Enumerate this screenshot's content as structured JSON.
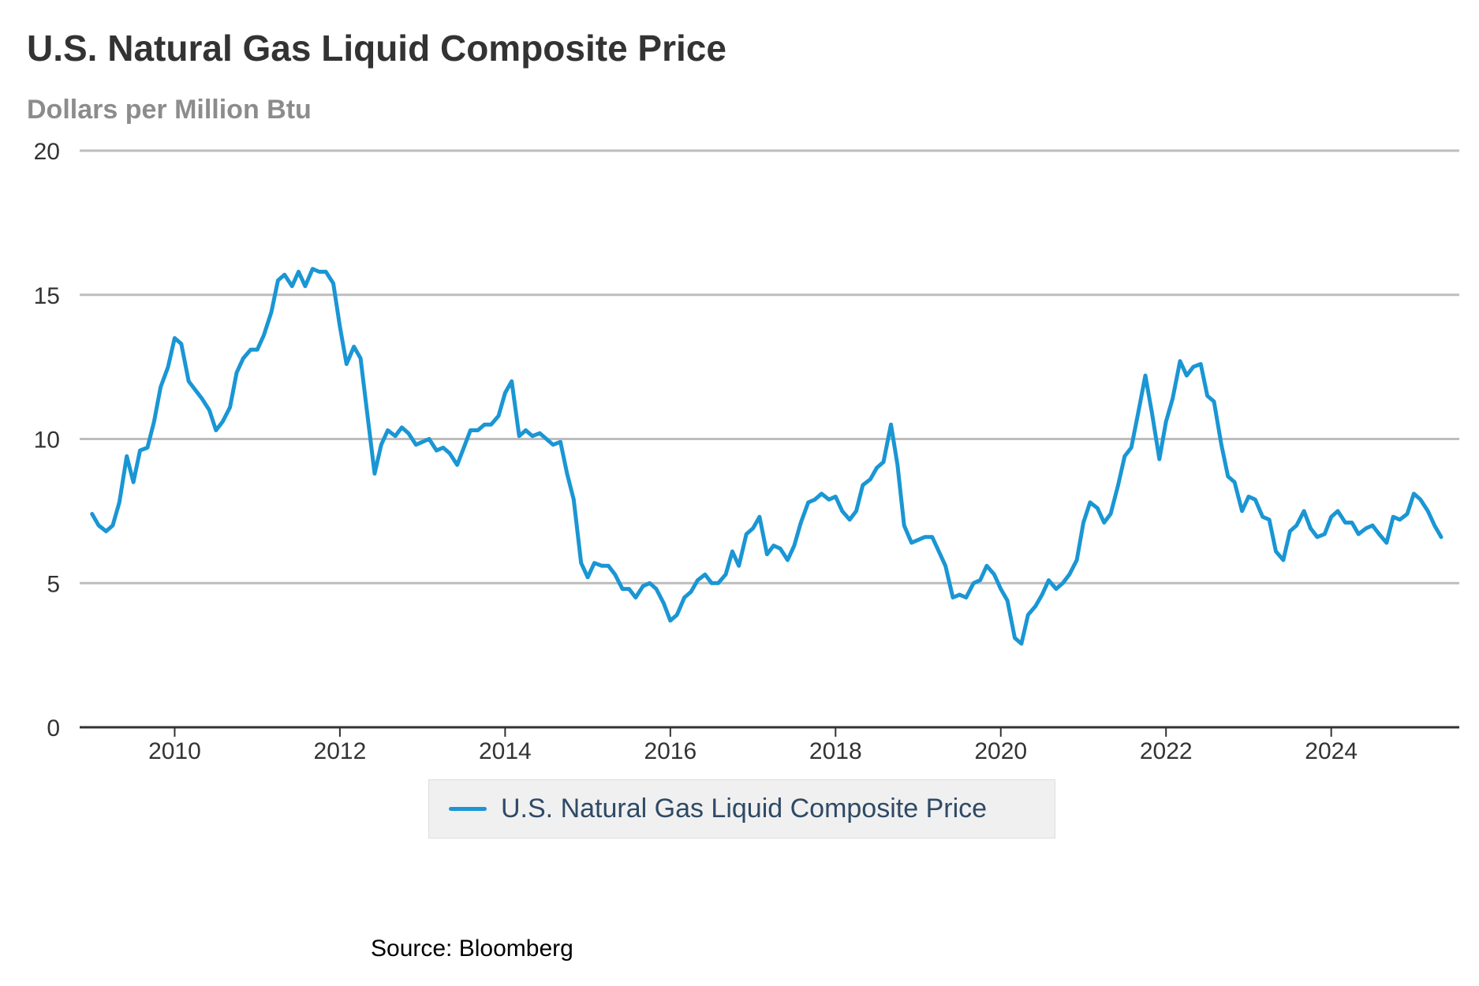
{
  "chart_data": {
    "type": "line",
    "title": "U.S. Natural Gas Liquid Composite Price",
    "subtitle": "Dollars per Million Btu",
    "xlabel": "",
    "ylabel": "",
    "source": "Source: Bloomberg",
    "x_ticks": [
      "2010",
      "2012",
      "2014",
      "2016",
      "2018",
      "2020",
      "2022",
      "2024"
    ],
    "y_ticks": [
      "0",
      "5",
      "10",
      "15",
      "20"
    ],
    "xlim": [
      2008.85,
      2025.55
    ],
    "ylim": [
      0,
      20
    ],
    "grid": true,
    "legend_position": "bottom-center",
    "series": [
      {
        "name": "U.S. Natural Gas Liquid Composite Price",
        "color": "#1a96d4",
        "points": [
          [
            2009.0,
            7.4
          ],
          [
            2009.08,
            7.0
          ],
          [
            2009.17,
            6.8
          ],
          [
            2009.25,
            7.0
          ],
          [
            2009.33,
            7.8
          ],
          [
            2009.42,
            9.4
          ],
          [
            2009.5,
            8.5
          ],
          [
            2009.58,
            9.6
          ],
          [
            2009.67,
            9.7
          ],
          [
            2009.75,
            10.6
          ],
          [
            2009.83,
            11.8
          ],
          [
            2009.92,
            12.5
          ],
          [
            2010.0,
            13.5
          ],
          [
            2010.08,
            13.3
          ],
          [
            2010.17,
            12.0
          ],
          [
            2010.25,
            11.7
          ],
          [
            2010.33,
            11.4
          ],
          [
            2010.42,
            11.0
          ],
          [
            2010.5,
            10.3
          ],
          [
            2010.58,
            10.6
          ],
          [
            2010.67,
            11.1
          ],
          [
            2010.75,
            12.3
          ],
          [
            2010.83,
            12.8
          ],
          [
            2010.92,
            13.1
          ],
          [
            2011.0,
            13.1
          ],
          [
            2011.08,
            13.6
          ],
          [
            2011.17,
            14.4
          ],
          [
            2011.25,
            15.5
          ],
          [
            2011.33,
            15.7
          ],
          [
            2011.42,
            15.3
          ],
          [
            2011.5,
            15.8
          ],
          [
            2011.58,
            15.3
          ],
          [
            2011.67,
            15.9
          ],
          [
            2011.75,
            15.8
          ],
          [
            2011.83,
            15.8
          ],
          [
            2011.92,
            15.4
          ],
          [
            2012.0,
            13.9
          ],
          [
            2012.08,
            12.6
          ],
          [
            2012.17,
            13.2
          ],
          [
            2012.25,
            12.8
          ],
          [
            2012.33,
            10.9
          ],
          [
            2012.42,
            8.8
          ],
          [
            2012.5,
            9.8
          ],
          [
            2012.58,
            10.3
          ],
          [
            2012.67,
            10.1
          ],
          [
            2012.75,
            10.4
          ],
          [
            2012.83,
            10.2
          ],
          [
            2012.92,
            9.8
          ],
          [
            2013.0,
            9.9
          ],
          [
            2013.08,
            10.0
          ],
          [
            2013.17,
            9.6
          ],
          [
            2013.25,
            9.7
          ],
          [
            2013.33,
            9.5
          ],
          [
            2013.42,
            9.1
          ],
          [
            2013.5,
            9.7
          ],
          [
            2013.58,
            10.3
          ],
          [
            2013.67,
            10.3
          ],
          [
            2013.75,
            10.5
          ],
          [
            2013.83,
            10.5
          ],
          [
            2013.92,
            10.8
          ],
          [
            2014.0,
            11.6
          ],
          [
            2014.08,
            12.0
          ],
          [
            2014.17,
            10.1
          ],
          [
            2014.25,
            10.3
          ],
          [
            2014.33,
            10.1
          ],
          [
            2014.42,
            10.2
          ],
          [
            2014.5,
            10.0
          ],
          [
            2014.58,
            9.8
          ],
          [
            2014.67,
            9.9
          ],
          [
            2014.75,
            8.8
          ],
          [
            2014.83,
            7.9
          ],
          [
            2014.92,
            5.7
          ],
          [
            2015.0,
            5.2
          ],
          [
            2015.08,
            5.7
          ],
          [
            2015.17,
            5.6
          ],
          [
            2015.25,
            5.6
          ],
          [
            2015.33,
            5.3
          ],
          [
            2015.42,
            4.8
          ],
          [
            2015.5,
            4.8
          ],
          [
            2015.58,
            4.5
          ],
          [
            2015.67,
            4.9
          ],
          [
            2015.75,
            5.0
          ],
          [
            2015.83,
            4.8
          ],
          [
            2015.92,
            4.3
          ],
          [
            2016.0,
            3.7
          ],
          [
            2016.08,
            3.9
          ],
          [
            2016.17,
            4.5
          ],
          [
            2016.25,
            4.7
          ],
          [
            2016.33,
            5.1
          ],
          [
            2016.42,
            5.3
          ],
          [
            2016.5,
            5.0
          ],
          [
            2016.58,
            5.0
          ],
          [
            2016.67,
            5.3
          ],
          [
            2016.75,
            6.1
          ],
          [
            2016.83,
            5.6
          ],
          [
            2016.92,
            6.7
          ],
          [
            2017.0,
            6.9
          ],
          [
            2017.08,
            7.3
          ],
          [
            2017.17,
            6.0
          ],
          [
            2017.25,
            6.3
          ],
          [
            2017.33,
            6.2
          ],
          [
            2017.42,
            5.8
          ],
          [
            2017.5,
            6.3
          ],
          [
            2017.58,
            7.1
          ],
          [
            2017.67,
            7.8
          ],
          [
            2017.75,
            7.9
          ],
          [
            2017.83,
            8.1
          ],
          [
            2017.92,
            7.9
          ],
          [
            2018.0,
            8.0
          ],
          [
            2018.08,
            7.5
          ],
          [
            2018.17,
            7.2
          ],
          [
            2018.25,
            7.5
          ],
          [
            2018.33,
            8.4
          ],
          [
            2018.42,
            8.6
          ],
          [
            2018.5,
            9.0
          ],
          [
            2018.58,
            9.2
          ],
          [
            2018.67,
            10.5
          ],
          [
            2018.75,
            9.1
          ],
          [
            2018.83,
            7.0
          ],
          [
            2018.92,
            6.4
          ],
          [
            2019.0,
            6.5
          ],
          [
            2019.08,
            6.6
          ],
          [
            2019.17,
            6.6
          ],
          [
            2019.25,
            6.1
          ],
          [
            2019.33,
            5.6
          ],
          [
            2019.42,
            4.5
          ],
          [
            2019.5,
            4.6
          ],
          [
            2019.58,
            4.5
          ],
          [
            2019.67,
            5.0
          ],
          [
            2019.75,
            5.1
          ],
          [
            2019.83,
            5.6
          ],
          [
            2019.92,
            5.3
          ],
          [
            2020.0,
            4.8
          ],
          [
            2020.08,
            4.4
          ],
          [
            2020.17,
            3.1
          ],
          [
            2020.25,
            2.9
          ],
          [
            2020.33,
            3.9
          ],
          [
            2020.42,
            4.2
          ],
          [
            2020.5,
            4.6
          ],
          [
            2020.58,
            5.1
          ],
          [
            2020.67,
            4.8
          ],
          [
            2020.75,
            5.0
          ],
          [
            2020.83,
            5.3
          ],
          [
            2020.92,
            5.8
          ],
          [
            2021.0,
            7.1
          ],
          [
            2021.08,
            7.8
          ],
          [
            2021.17,
            7.6
          ],
          [
            2021.25,
            7.1
          ],
          [
            2021.33,
            7.4
          ],
          [
            2021.42,
            8.4
          ],
          [
            2021.5,
            9.4
          ],
          [
            2021.58,
            9.7
          ],
          [
            2021.67,
            11.0
          ],
          [
            2021.75,
            12.2
          ],
          [
            2021.83,
            10.9
          ],
          [
            2021.92,
            9.3
          ],
          [
            2022.0,
            10.6
          ],
          [
            2022.08,
            11.4
          ],
          [
            2022.17,
            12.7
          ],
          [
            2022.25,
            12.2
          ],
          [
            2022.33,
            12.5
          ],
          [
            2022.42,
            12.6
          ],
          [
            2022.5,
            11.5
          ],
          [
            2022.58,
            11.3
          ],
          [
            2022.67,
            9.8
          ],
          [
            2022.75,
            8.7
          ],
          [
            2022.83,
            8.5
          ],
          [
            2022.92,
            7.5
          ],
          [
            2023.0,
            8.0
          ],
          [
            2023.08,
            7.9
          ],
          [
            2023.17,
            7.3
          ],
          [
            2023.25,
            7.2
          ],
          [
            2023.33,
            6.1
          ],
          [
            2023.42,
            5.8
          ],
          [
            2023.5,
            6.8
          ],
          [
            2023.58,
            7.0
          ],
          [
            2023.67,
            7.5
          ],
          [
            2023.75,
            6.9
          ],
          [
            2023.83,
            6.6
          ],
          [
            2023.92,
            6.7
          ],
          [
            2024.0,
            7.3
          ],
          [
            2024.08,
            7.5
          ],
          [
            2024.17,
            7.1
          ],
          [
            2024.25,
            7.1
          ],
          [
            2024.33,
            6.7
          ],
          [
            2024.42,
            6.9
          ],
          [
            2024.5,
            7.0
          ],
          [
            2024.58,
            6.7
          ],
          [
            2024.67,
            6.4
          ],
          [
            2024.75,
            7.3
          ],
          [
            2024.83,
            7.2
          ],
          [
            2024.92,
            7.4
          ],
          [
            2025.0,
            8.1
          ],
          [
            2025.08,
            7.9
          ],
          [
            2025.17,
            7.5
          ],
          [
            2025.25,
            7.0
          ],
          [
            2025.33,
            6.6
          ]
        ]
      }
    ]
  }
}
